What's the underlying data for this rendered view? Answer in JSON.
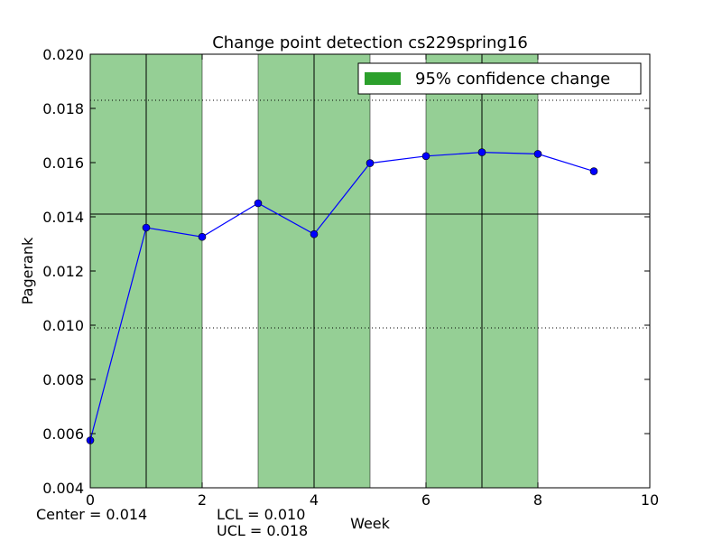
{
  "chart_data": {
    "type": "line",
    "title": "Change point detection cs229spring16",
    "xlabel": "Week",
    "ylabel": "Pagerank",
    "xlim": [
      0,
      10
    ],
    "ylim": [
      0.004,
      0.02
    ],
    "x_ticks": [
      0,
      2,
      4,
      6,
      8,
      10
    ],
    "x_tick_labels": [
      "0",
      "2",
      "4",
      "6",
      "8",
      "10"
    ],
    "y_ticks": [
      0.004,
      0.006,
      0.008,
      0.01,
      0.012,
      0.014,
      0.016,
      0.018,
      0.02
    ],
    "y_tick_labels": [
      "0.004",
      "0.006",
      "0.008",
      "0.010",
      "0.012",
      "0.014",
      "0.016",
      "0.018",
      "0.020"
    ],
    "series": [
      {
        "x": [
          0,
          1,
          2,
          3,
          4,
          5,
          6,
          7,
          8,
          9
        ],
        "values": [
          0.00575,
          0.0136,
          0.01326,
          0.0145,
          0.01336,
          0.01598,
          0.01624,
          0.01638,
          0.01632,
          0.01568
        ],
        "color": "#0000ff"
      }
    ],
    "change_regions": [
      [
        0,
        2
      ],
      [
        3,
        5
      ],
      [
        6,
        8
      ]
    ],
    "change_lines": [
      1,
      4,
      7
    ],
    "region_color": "#2ca02c",
    "center_line": 0.0141,
    "control_limits": [
      0.0099,
      0.0183
    ],
    "legend": {
      "label": "95% confidence change",
      "color": "#2ca02c",
      "position": "top-right"
    },
    "grid": false
  },
  "footer": {
    "center": "Center = 0.014",
    "lcl": "LCL = 0.010",
    "ucl": "UCL = 0.018"
  }
}
